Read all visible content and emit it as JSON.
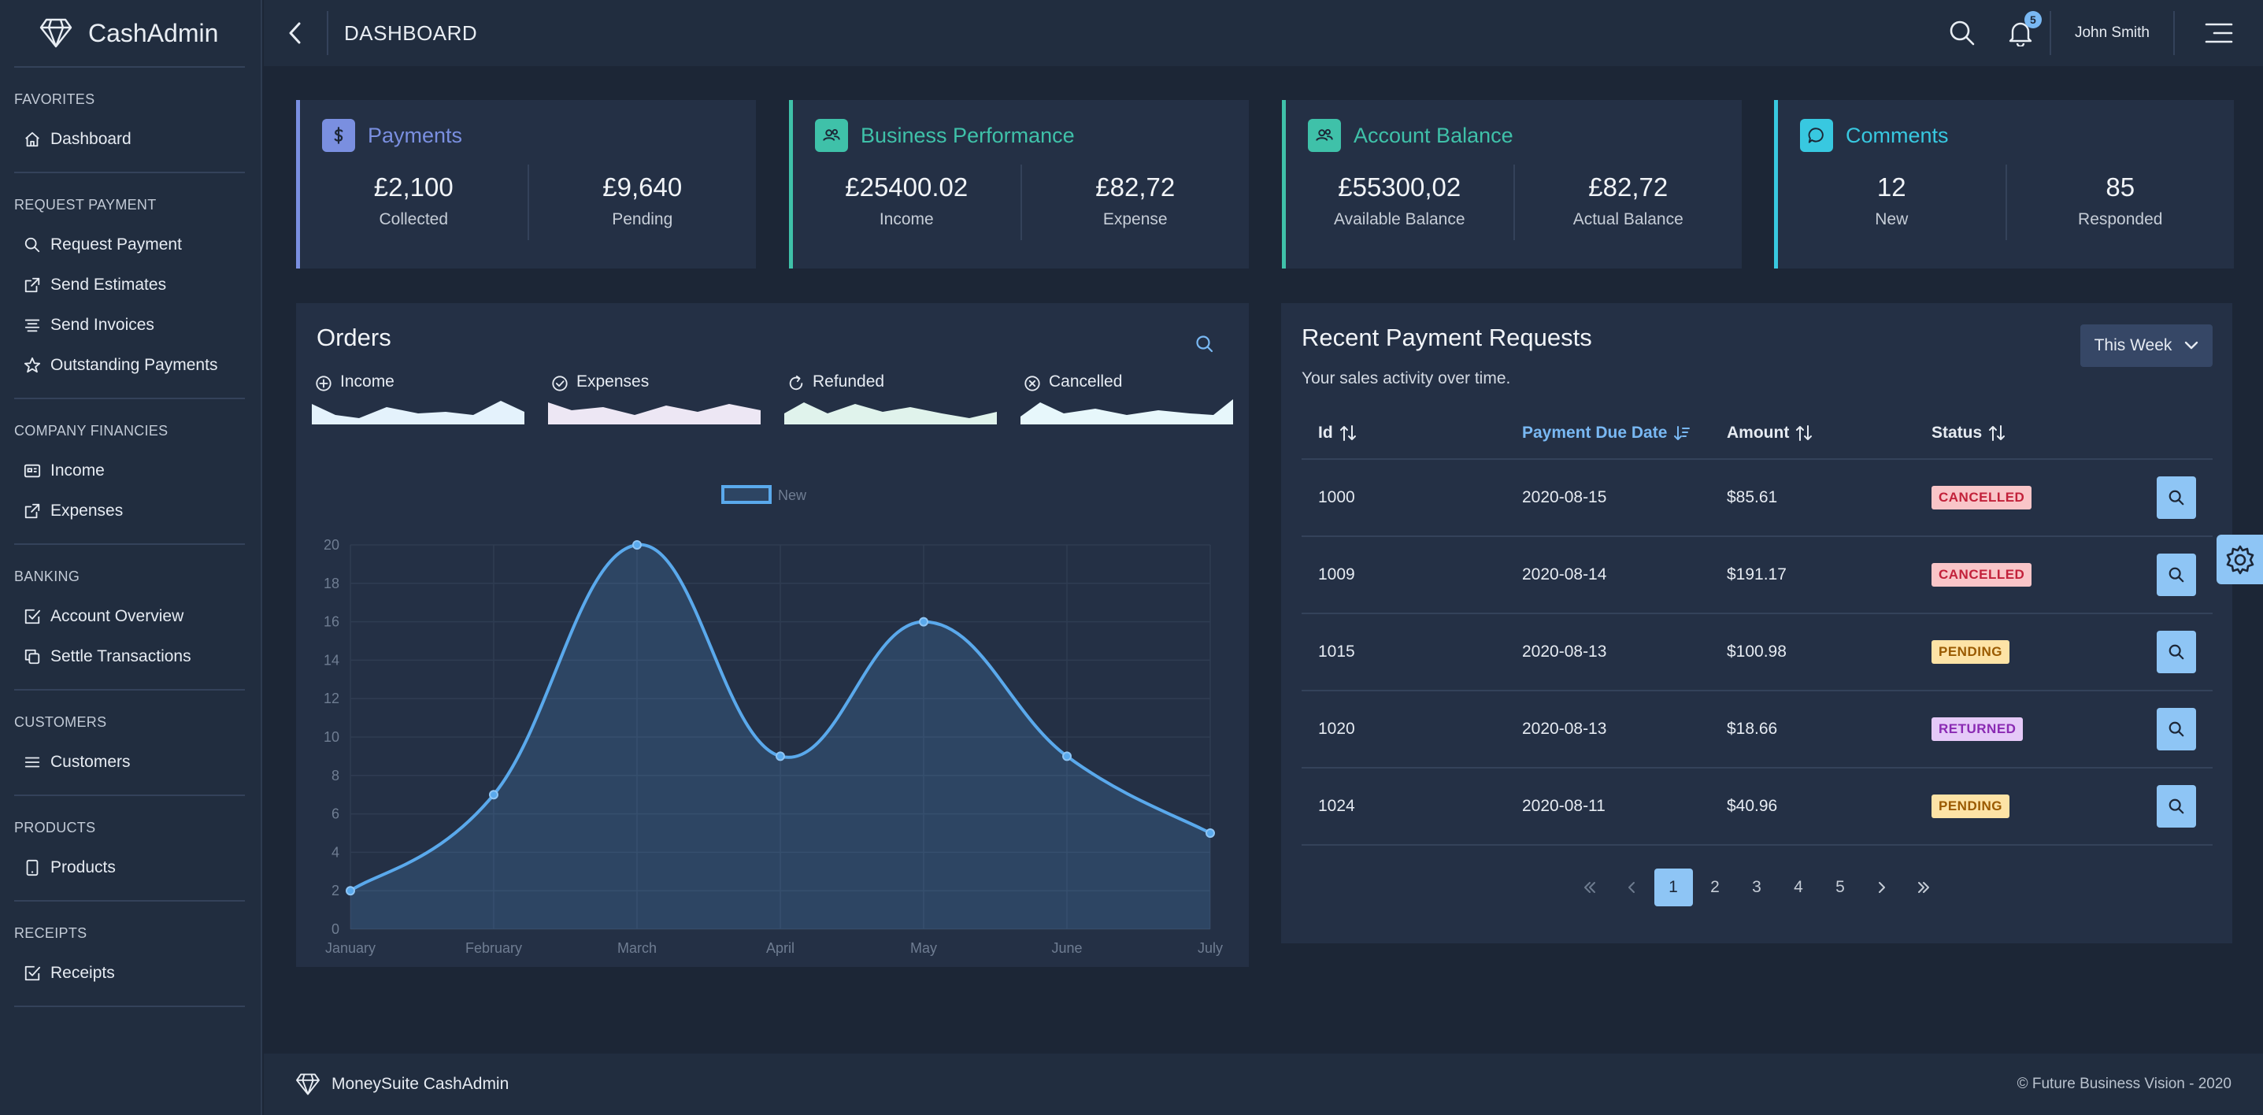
{
  "brand": {
    "name": "CashAdmin"
  },
  "sidebar": {
    "sections": [
      {
        "title": "FAVORITES",
        "items": [
          {
            "label": "Dashboard",
            "icon": "home-icon"
          }
        ]
      },
      {
        "title": "REQUEST PAYMENT",
        "items": [
          {
            "label": "Request Payment",
            "icon": "search-icon"
          },
          {
            "label": "Send Estimates",
            "icon": "external-link-icon"
          },
          {
            "label": "Send Invoices",
            "icon": "align-icon"
          },
          {
            "label": "Outstanding Payments",
            "icon": "star-icon"
          }
        ]
      },
      {
        "title": "COMPANY FINANCIES",
        "items": [
          {
            "label": "Income",
            "icon": "card-icon"
          },
          {
            "label": "Expenses",
            "icon": "external-link-icon"
          }
        ]
      },
      {
        "title": "BANKING",
        "items": [
          {
            "label": "Account Overview",
            "icon": "checkbox-icon"
          },
          {
            "label": "Settle Transactions",
            "icon": "copy-icon"
          }
        ]
      },
      {
        "title": "CUSTOMERS",
        "items": [
          {
            "label": "Customers",
            "icon": "list-icon"
          }
        ]
      },
      {
        "title": "PRODUCTS",
        "items": [
          {
            "label": "Products",
            "icon": "tablet-icon"
          }
        ]
      },
      {
        "title": "RECEIPTS",
        "items": [
          {
            "label": "Receipts",
            "icon": "checkbox-icon"
          }
        ]
      }
    ]
  },
  "header": {
    "title": "DASHBOARD",
    "notification_count": "5",
    "user_name": "John Smith"
  },
  "cards": [
    {
      "title": "Payments",
      "color": "#7a8fe0",
      "icon": "dollar-icon",
      "values": [
        {
          "value": "£2,100",
          "label": "Collected"
        },
        {
          "value": "£9,640",
          "label": "Pending"
        }
      ]
    },
    {
      "title": "Business Performance",
      "color": "#3fc1a9",
      "icon": "users-icon",
      "values": [
        {
          "value": "£25400.02",
          "label": "Income"
        },
        {
          "value": "£82,72",
          "label": "Expense"
        }
      ]
    },
    {
      "title": "Account Balance",
      "color": "#3fc1a9",
      "icon": "users-icon",
      "values": [
        {
          "value": "£55300,02",
          "label": "Available Balance"
        },
        {
          "value": "£82,72",
          "label": "Actual Balance"
        }
      ]
    },
    {
      "title": "Comments",
      "color": "#38c8e0",
      "icon": "comment-icon",
      "values": [
        {
          "value": "12",
          "label": "New"
        },
        {
          "value": "85",
          "label": "Responded"
        }
      ]
    }
  ],
  "orders": {
    "title": "Orders",
    "sparklines": [
      {
        "label": "Income",
        "icon": "plus-circle-icon",
        "color": "#e4f2fc"
      },
      {
        "label": "Expenses",
        "icon": "check-circle-icon",
        "color": "#ede7f4"
      },
      {
        "label": "Refunded",
        "icon": "refresh-icon",
        "color": "#e0f3ec"
      },
      {
        "label": "Cancelled",
        "icon": "x-circle-icon",
        "color": "#e7f7fb"
      }
    ]
  },
  "chart_data": {
    "type": "area",
    "categories": [
      "January",
      "February",
      "March",
      "April",
      "May",
      "June",
      "July"
    ],
    "series": [
      {
        "name": "New",
        "values": [
          2,
          7,
          20,
          9,
          16,
          9,
          5
        ]
      }
    ],
    "ylim": [
      0,
      20
    ],
    "yticks": [
      0,
      2,
      4,
      6,
      8,
      10,
      12,
      14,
      16,
      18,
      20
    ],
    "grid": true,
    "legend": "top",
    "color": "#5aa9ec"
  },
  "payments": {
    "title": "Recent Payment Requests",
    "subtitle": "Your sales activity over time.",
    "filter": "This Week",
    "columns": [
      "Id",
      "Payment Due Date",
      "Amount",
      "Status"
    ],
    "rows": [
      {
        "id": "1000",
        "date": "2020-08-15",
        "amount": "$85.61",
        "status": "CANCELLED"
      },
      {
        "id": "1009",
        "date": "2020-08-14",
        "amount": "$191.17",
        "status": "CANCELLED"
      },
      {
        "id": "1015",
        "date": "2020-08-13",
        "amount": "$100.98",
        "status": "PENDING"
      },
      {
        "id": "1020",
        "date": "2020-08-13",
        "amount": "$18.66",
        "status": "RETURNED"
      },
      {
        "id": "1024",
        "date": "2020-08-11",
        "amount": "$40.96",
        "status": "PENDING"
      }
    ],
    "pages": [
      "1",
      "2",
      "3",
      "4",
      "5"
    ],
    "current_page": "1"
  },
  "footer": {
    "brand": "MoneySuite CashAdmin",
    "copyright": "© Future Business Vision - 2020"
  }
}
